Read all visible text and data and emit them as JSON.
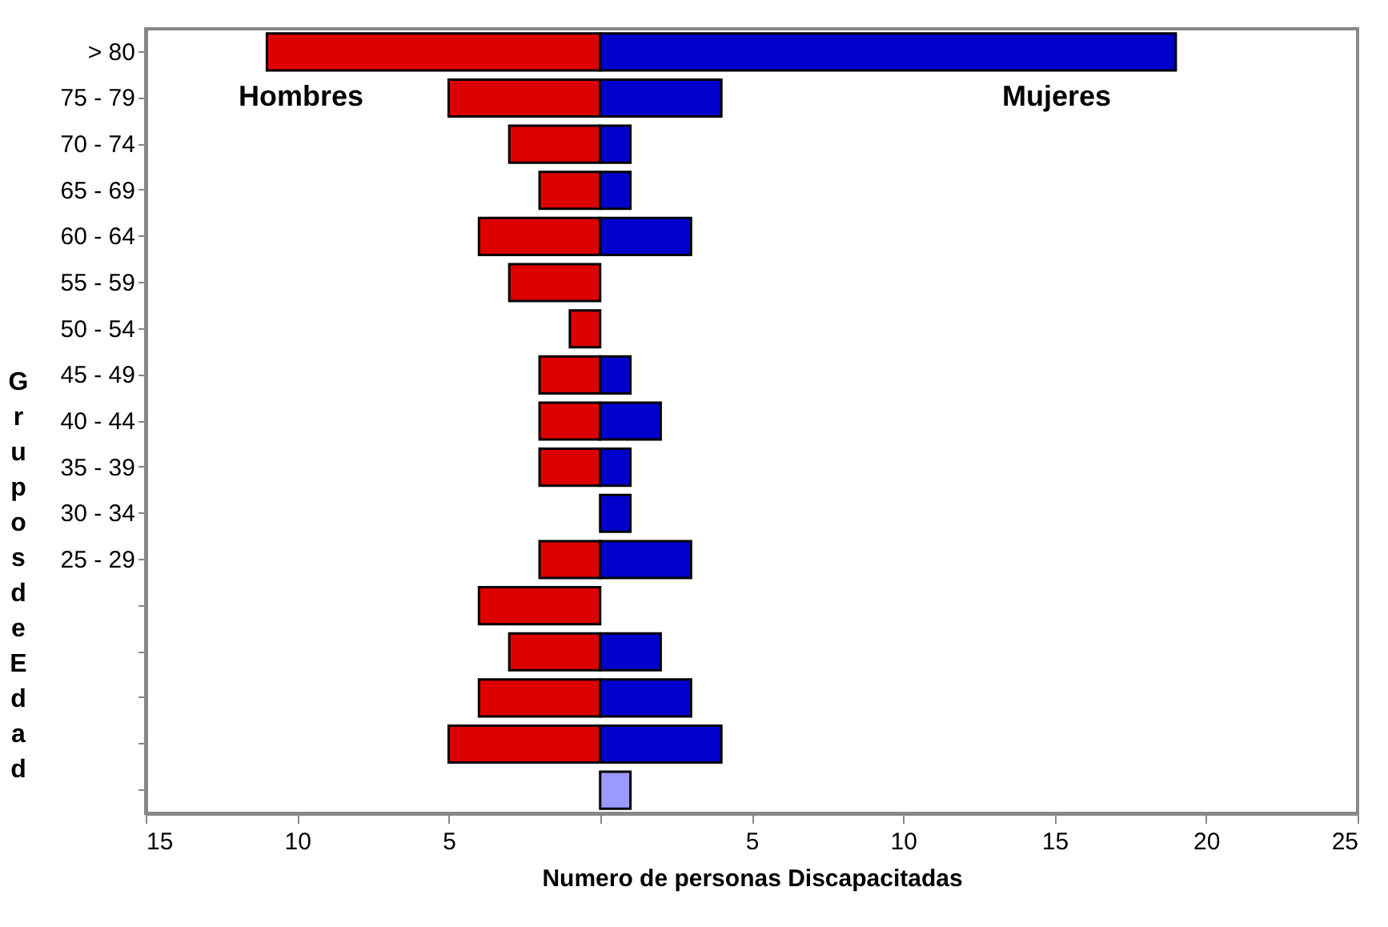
{
  "chart_data": {
    "type": "bar",
    "orientation": "horizontal",
    "xlabel": "Numero de personas  Discapacitadas",
    "ylabel": "Grupos de Edad",
    "categories": [
      "> 80",
      "75 - 79",
      "70 - 74",
      "65 - 69",
      "60 - 64",
      "55 - 59",
      "50 - 54",
      "45 - 49",
      "40 - 44",
      "35 - 39",
      "30 - 34",
      "25 - 29",
      null,
      null,
      null,
      null,
      null
    ],
    "series": [
      {
        "name": "Hombres",
        "color": "#dd0000",
        "values": [
          -11,
          -5,
          -3,
          -2,
          -4,
          -3,
          -1,
          -2,
          -2,
          -2,
          null,
          -2,
          -4,
          -3,
          -4,
          -5,
          null
        ]
      },
      {
        "name": "Mujeres",
        "colors": [
          "#0000cc",
          "#0000cc",
          "#0000cc",
          "#0000cc",
          "#0000cc",
          null,
          null,
          "#0000cc",
          "#0000cc",
          "#0000cc",
          "#0000cc",
          "#0000cc",
          null,
          "#0000cc",
          "#0000cc",
          "#0000cc",
          "#9999ff"
        ],
        "values": [
          19,
          4,
          1,
          1,
          3,
          null,
          null,
          1,
          2,
          1,
          1,
          3,
          null,
          2,
          3,
          4,
          1
        ]
      }
    ],
    "xlim": [
      -15,
      25
    ],
    "xticks": [
      {
        "value": -15,
        "label": "15"
      },
      {
        "value": -10,
        "label": "10"
      },
      {
        "value": -5,
        "label": "5"
      },
      {
        "value": 0,
        "label": null
      },
      5,
      10,
      15,
      20,
      25
    ],
    "stacked": true,
    "grid": false
  }
}
